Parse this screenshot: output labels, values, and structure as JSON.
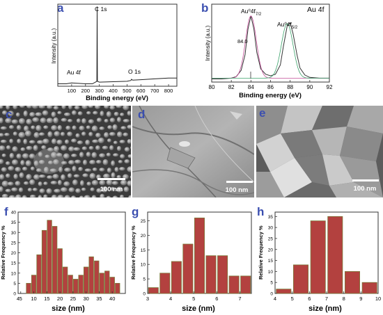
{
  "panels": {
    "a": {
      "letter": "a"
    },
    "b": {
      "letter": "b"
    },
    "c": {
      "letter": "c",
      "scale_bar": "100 nm"
    },
    "d": {
      "letter": "d",
      "scale_bar": "100 nm"
    },
    "e": {
      "letter": "e",
      "scale_bar": "100 nm"
    },
    "f": {
      "letter": "f"
    },
    "g": {
      "letter": "g"
    },
    "h": {
      "letter": "h"
    }
  },
  "colors": {
    "letters": "#3b4fb0",
    "bars": "#b3413f",
    "bar_edge": "#7a7a3a",
    "spectrum": "#222222"
  },
  "chart_data": [
    {
      "id": "a",
      "type": "line",
      "xlabel": "Binding energy (eV)",
      "ylabel": "Intensity (a.u.)",
      "xlim": [
        0,
        860
      ],
      "xticks": [
        "100",
        "200",
        "300",
        "400",
        "500",
        "600",
        "700",
        "800"
      ],
      "annotations": [
        "C 1s",
        "Au 4f",
        "O 1s"
      ],
      "x": [
        0,
        60,
        100,
        150,
        200,
        250,
        282,
        284,
        286,
        300,
        400,
        500,
        528,
        532,
        540,
        600,
        700,
        800,
        860
      ],
      "y": [
        0.03,
        0.03,
        0.04,
        0.035,
        0.03,
        0.03,
        0.06,
        0.97,
        0.06,
        0.05,
        0.055,
        0.06,
        0.07,
        0.085,
        0.075,
        0.08,
        0.09,
        0.1,
        0.1
      ]
    },
    {
      "id": "b",
      "type": "line",
      "title": "Au 4f",
      "xlabel": "Binding energy (eV)",
      "ylabel": "Intensity (a.u.)",
      "xlim": [
        80,
        92
      ],
      "xticks": [
        "80",
        "82",
        "84",
        "86",
        "88",
        "90",
        "92"
      ],
      "annotations": [
        "Au⁰4f",
        "7/2",
        "Au⁰4f",
        "5/2",
        "84.0"
      ],
      "x": [
        80,
        81,
        82,
        82.5,
        83,
        83.4,
        83.7,
        84.0,
        84.3,
        84.6,
        85,
        85.5,
        86,
        86.5,
        87,
        87.3,
        87.7,
        88,
        88.3,
        88.7,
        89,
        89.5,
        90,
        91,
        92
      ],
      "y": [
        0.04,
        0.04,
        0.05,
        0.07,
        0.15,
        0.35,
        0.68,
        0.85,
        0.68,
        0.38,
        0.17,
        0.1,
        0.08,
        0.1,
        0.22,
        0.45,
        0.72,
        0.76,
        0.62,
        0.35,
        0.18,
        0.09,
        0.06,
        0.05,
        0.05
      ]
    },
    {
      "id": "f",
      "type": "bar",
      "xlabel": "size (nm)",
      "ylabel": "Relative Frequency %",
      "xlim": [
        4,
        45
      ],
      "ylim": [
        0,
        40
      ],
      "xticks": [
        "5",
        "10",
        "15",
        "20",
        "25",
        "30",
        "35",
        "40",
        "4"
      ],
      "yticks": [
        "0",
        "5",
        "10",
        "15",
        "20",
        "25",
        "30",
        "35",
        "40"
      ],
      "categories": [
        "8",
        "10",
        "12",
        "14",
        "16",
        "18",
        "20",
        "22",
        "24",
        "26",
        "28",
        "30",
        "32",
        "34",
        "36",
        "38",
        "40",
        "42"
      ],
      "values": [
        5,
        9,
        19,
        31,
        36,
        33,
        22,
        13,
        9,
        7,
        9,
        13,
        18,
        16,
        10,
        11,
        8,
        5
      ]
    },
    {
      "id": "g",
      "type": "bar",
      "xlabel": "size (nm)",
      "ylabel": "Relative Frequency %",
      "xlim": [
        3,
        7.5
      ],
      "ylim": [
        0,
        28
      ],
      "xticks": [
        "3",
        "4",
        "5",
        "6",
        "7"
      ],
      "yticks": [
        "0",
        "5",
        "10",
        "15",
        "20",
        "25"
      ],
      "categories": [
        "3.25",
        "3.75",
        "4.25",
        "4.75",
        "5.25",
        "5.75",
        "6.25",
        "6.75",
        "7.25"
      ],
      "values": [
        2,
        7,
        11,
        17,
        26,
        13,
        13,
        6,
        6
      ]
    },
    {
      "id": "h",
      "type": "bar",
      "xlabel": "size (nm)",
      "ylabel": "Relative Frequency %",
      "xlim": [
        4,
        10
      ],
      "ylim": [
        0,
        37
      ],
      "xticks": [
        "4",
        "5",
        "6",
        "7",
        "8",
        "9",
        "10"
      ],
      "yticks": [
        "0",
        "5",
        "10",
        "15",
        "20",
        "25",
        "30",
        "35"
      ],
      "categories": [
        "4.5",
        "5.5",
        "6.5",
        "7.5",
        "8.5",
        "9.5"
      ],
      "values": [
        2,
        13,
        33,
        35,
        10,
        5
      ]
    }
  ]
}
